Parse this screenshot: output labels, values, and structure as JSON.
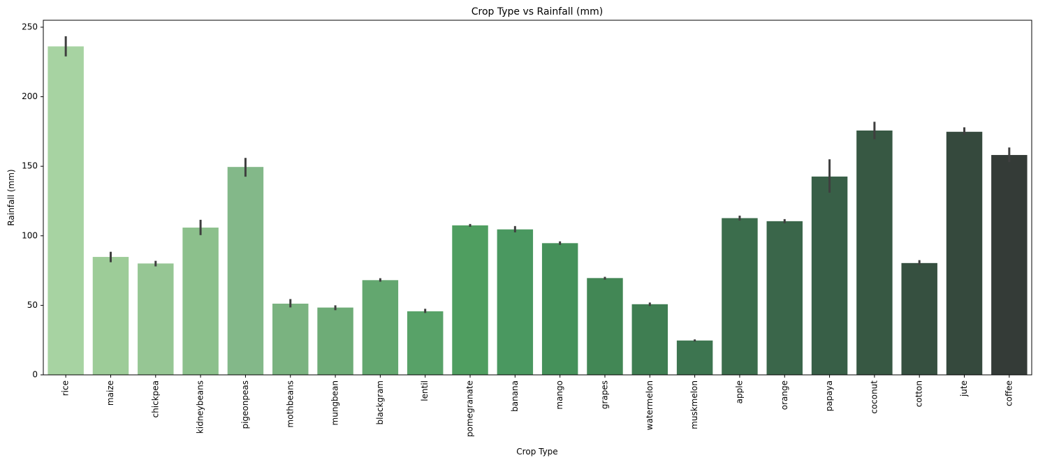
{
  "chart_data": {
    "type": "bar",
    "title": "Crop Type vs Rainfall (mm)",
    "xlabel": "Crop Type",
    "ylabel": "Rainfall (mm)",
    "ylim": [
      0,
      255
    ],
    "yticks": [
      0,
      50,
      100,
      150,
      200,
      250
    ],
    "grid": false,
    "categories": [
      "rice",
      "maize",
      "chickpea",
      "kidneybeans",
      "pigeonpeas",
      "mothbeans",
      "mungbean",
      "blackgram",
      "lentil",
      "pomegranate",
      "banana",
      "mango",
      "grapes",
      "watermelon",
      "muskmelon",
      "apple",
      "orange",
      "papaya",
      "coconut",
      "cotton",
      "jute",
      "coffee"
    ],
    "values": [
      236.2,
      84.8,
      80.1,
      105.9,
      149.5,
      51.2,
      48.4,
      68.1,
      45.7,
      107.5,
      104.6,
      94.7,
      69.6,
      50.8,
      24.7,
      112.7,
      110.5,
      142.6,
      175.7,
      80.4,
      174.8,
      158.1
    ],
    "error_low": [
      229.0,
      81.0,
      78.0,
      100.5,
      142.5,
      48.5,
      46.5,
      67.0,
      44.5,
      106.5,
      102.5,
      93.5,
      68.5,
      49.5,
      24.0,
      111.0,
      109.0,
      131.0,
      169.5,
      79.0,
      172.5,
      153.0
    ],
    "error_high": [
      243.5,
      88.5,
      82.0,
      111.5,
      156.0,
      54.5,
      50.0,
      69.5,
      47.5,
      108.5,
      107.0,
      96.0,
      70.5,
      52.0,
      25.5,
      114.5,
      112.0,
      155.0,
      182.0,
      82.5,
      178.0,
      163.5
    ],
    "colors": [
      "#a7d3a2",
      "#9dcc98",
      "#96c694",
      "#8cc08c",
      "#83b889",
      "#7ab380",
      "#6eac77",
      "#63a76f",
      "#58a268",
      "#4f9e60",
      "#4a9860",
      "#45915a",
      "#428755",
      "#3f7e52",
      "#3d7550",
      "#3b6d4c",
      "#3a664a",
      "#385f47",
      "#375843",
      "#365040",
      "#35493d",
      "#343b37"
    ],
    "error_color": "#3f3f3f"
  }
}
